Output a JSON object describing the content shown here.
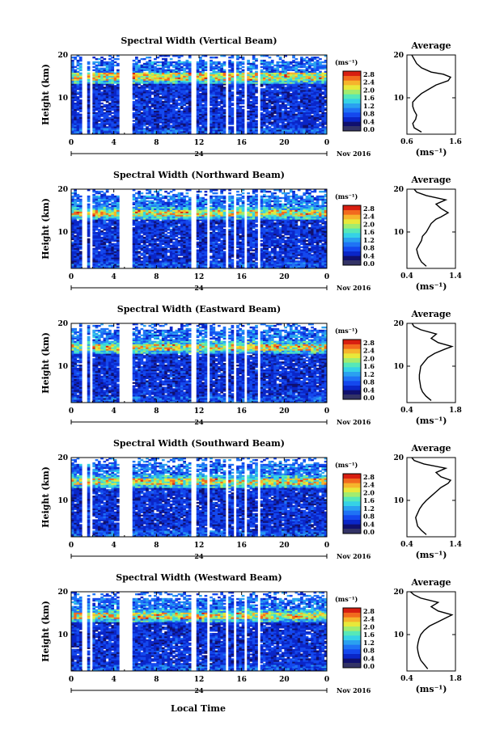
{
  "chart_data": [
    {
      "type": "heatmap",
      "title": "Spectral Width (Vertical Beam)",
      "ylabel": "Height (km)",
      "date_day": "24",
      "date_label": "Nov 2016",
      "x_ticks": [
        "0",
        "4",
        "8",
        "12",
        "16",
        "20",
        "0"
      ],
      "y_ticks": [
        "20",
        "10"
      ],
      "ylim": [
        1.5,
        20
      ],
      "xlim": [
        0,
        24
      ],
      "colorbar_unit": "(ms⁻¹)",
      "colorbar_ticks": [
        "2.8",
        "2.4",
        "2.0",
        "1.6",
        "1.2",
        "0.8",
        "0.4",
        "0.0"
      ],
      "avg_title": "Average",
      "avg_xlabel": "(ms⁻¹)",
      "avg_x_ticks": [
        "0.6",
        "1.6"
      ],
      "avg_y_ticks": [
        "20",
        "10"
      ],
      "avg_xlim": [
        0.6,
        1.6
      ],
      "data_gaps_hours": [
        [
          1.1,
          1.4
        ],
        [
          1.7,
          2.0
        ],
        [
          4.6,
          5.8
        ],
        [
          11.2,
          11.7
        ],
        [
          12.8,
          13.1
        ],
        [
          14.6,
          14.8
        ],
        [
          15.2,
          15.4
        ],
        [
          16.2,
          16.6
        ],
        [
          17.5,
          17.8
        ]
      ],
      "tropopause_km": 15,
      "profile": [
        [
          2,
          0.9
        ],
        [
          3,
          0.75
        ],
        [
          4,
          0.72
        ],
        [
          5,
          0.78
        ],
        [
          6,
          0.8
        ],
        [
          7,
          0.75
        ],
        [
          8,
          0.72
        ],
        [
          9,
          0.72
        ],
        [
          10,
          0.8
        ],
        [
          11,
          0.9
        ],
        [
          12,
          1.05
        ],
        [
          13,
          1.2
        ],
        [
          14,
          1.45
        ],
        [
          14.8,
          1.5
        ],
        [
          15.5,
          1.35
        ],
        [
          16,
          1.1
        ],
        [
          17,
          0.9
        ],
        [
          18,
          0.8
        ],
        [
          19,
          0.75
        ],
        [
          20,
          0.7
        ]
      ]
    },
    {
      "type": "heatmap",
      "title": "Spectral Width (Northward Beam)",
      "ylabel": "Height (km)",
      "date_day": "24",
      "date_label": "Nov 2016",
      "x_ticks": [
        "0",
        "4",
        "8",
        "12",
        "16",
        "20",
        "0"
      ],
      "y_ticks": [
        "20",
        "10"
      ],
      "ylim": [
        1.5,
        20
      ],
      "xlim": [
        0,
        24
      ],
      "colorbar_unit": "(ms⁻¹)",
      "colorbar_ticks": [
        "2.8",
        "2.4",
        "2.0",
        "1.6",
        "1.2",
        "0.8",
        "0.4",
        "0.0"
      ],
      "avg_title": "Average",
      "avg_xlabel": "(ms⁻¹)",
      "avg_x_ticks": [
        "0.4",
        "1.4"
      ],
      "avg_y_ticks": [
        "20",
        "10"
      ],
      "avg_xlim": [
        0.4,
        1.4
      ],
      "data_gaps_hours": [
        [
          1.1,
          1.4
        ],
        [
          1.7,
          2.0
        ],
        [
          4.6,
          5.8
        ],
        [
          11.2,
          11.7
        ],
        [
          12.8,
          13.1
        ],
        [
          14.6,
          14.8
        ],
        [
          15.2,
          15.4
        ],
        [
          16.2,
          16.6
        ],
        [
          17.5,
          17.8
        ]
      ],
      "tropopause_km": 14.5,
      "profile": [
        [
          2,
          0.8
        ],
        [
          3,
          0.7
        ],
        [
          4,
          0.65
        ],
        [
          5,
          0.62
        ],
        [
          6,
          0.6
        ],
        [
          7,
          0.65
        ],
        [
          8,
          0.7
        ],
        [
          9,
          0.72
        ],
        [
          10,
          0.8
        ],
        [
          11,
          0.85
        ],
        [
          12,
          0.9
        ],
        [
          13,
          1.0
        ],
        [
          13.5,
          1.1
        ],
        [
          14.5,
          1.25
        ],
        [
          15.5,
          1.1
        ],
        [
          16.5,
          1.0
        ],
        [
          17.5,
          1.2
        ],
        [
          18.5,
          0.8
        ],
        [
          19.3,
          0.6
        ],
        [
          20,
          0.55
        ]
      ]
    },
    {
      "type": "heatmap",
      "title": "Spectral Width (Eastward Beam)",
      "ylabel": "Height (km)",
      "date_day": "24",
      "date_label": "Nov 2016",
      "x_ticks": [
        "0",
        "4",
        "8",
        "12",
        "16",
        "20",
        "0"
      ],
      "y_ticks": [
        "20",
        "10"
      ],
      "ylim": [
        1.5,
        20
      ],
      "xlim": [
        0,
        24
      ],
      "colorbar_unit": "(ms⁻¹)",
      "colorbar_ticks": [
        "2.8",
        "2.4",
        "2.0",
        "1.6",
        "1.2",
        "0.8",
        "0.4",
        "0.0"
      ],
      "avg_title": "Average",
      "avg_xlabel": "(ms⁻¹)",
      "avg_x_ticks": [
        "0.4",
        "1.8"
      ],
      "avg_y_ticks": [
        "20",
        "10"
      ],
      "avg_xlim": [
        0.4,
        1.8
      ],
      "data_gaps_hours": [
        [
          1.1,
          1.4
        ],
        [
          1.7,
          2.0
        ],
        [
          4.6,
          5.8
        ],
        [
          11.2,
          11.7
        ],
        [
          12.8,
          13.1
        ],
        [
          14.6,
          14.8
        ],
        [
          15.2,
          15.4
        ],
        [
          16.2,
          16.6
        ],
        [
          17.5,
          17.8
        ]
      ],
      "tropopause_km": 14.5,
      "profile": [
        [
          2,
          1.1
        ],
        [
          3,
          0.95
        ],
        [
          4,
          0.85
        ],
        [
          5,
          0.8
        ],
        [
          6,
          0.78
        ],
        [
          7,
          0.76
        ],
        [
          8,
          0.76
        ],
        [
          9,
          0.78
        ],
        [
          10,
          0.8
        ],
        [
          11,
          0.9
        ],
        [
          12,
          1.0
        ],
        [
          13,
          1.2
        ],
        [
          14,
          1.5
        ],
        [
          14.6,
          1.7
        ],
        [
          15.5,
          1.3
        ],
        [
          16.5,
          1.1
        ],
        [
          17.5,
          1.25
        ],
        [
          18.5,
          0.8
        ],
        [
          19.3,
          0.6
        ],
        [
          20,
          0.55
        ]
      ]
    },
    {
      "type": "heatmap",
      "title": "Spectral Width (Southward Beam)",
      "ylabel": "Height (km)",
      "date_day": "24",
      "date_label": "Nov 2016",
      "x_ticks": [
        "0",
        "4",
        "8",
        "12",
        "16",
        "20",
        "0"
      ],
      "y_ticks": [
        "20",
        "10"
      ],
      "ylim": [
        1.5,
        20
      ],
      "xlim": [
        0,
        24
      ],
      "colorbar_unit": "(ms⁻¹)",
      "colorbar_ticks": [
        "2.8",
        "2.4",
        "2.0",
        "1.6",
        "1.2",
        "0.8",
        "0.4",
        "0.0"
      ],
      "avg_title": "Average",
      "avg_xlabel": "(ms⁻¹)",
      "avg_x_ticks": [
        "0.4",
        "1.4"
      ],
      "avg_y_ticks": [
        "20",
        "10"
      ],
      "avg_xlim": [
        0.4,
        1.4
      ],
      "data_gaps_hours": [
        [
          1.1,
          1.4
        ],
        [
          1.7,
          2.0
        ],
        [
          4.6,
          5.8
        ],
        [
          11.2,
          11.7
        ],
        [
          12.8,
          13.1
        ],
        [
          14.6,
          14.8
        ],
        [
          15.2,
          15.4
        ],
        [
          16.2,
          16.6
        ],
        [
          17.5,
          17.8
        ]
      ],
      "tropopause_km": 14.5,
      "profile": [
        [
          2,
          0.8
        ],
        [
          3,
          0.7
        ],
        [
          4,
          0.62
        ],
        [
          5,
          0.6
        ],
        [
          6,
          0.58
        ],
        [
          7,
          0.62
        ],
        [
          8,
          0.66
        ],
        [
          9,
          0.72
        ],
        [
          10,
          0.8
        ],
        [
          11,
          0.9
        ],
        [
          12,
          1.0
        ],
        [
          13,
          1.1
        ],
        [
          14,
          1.25
        ],
        [
          14.7,
          1.3
        ],
        [
          15.5,
          1.1
        ],
        [
          16.5,
          1.0
        ],
        [
          17.5,
          1.2
        ],
        [
          18.5,
          0.75
        ],
        [
          19.3,
          0.55
        ],
        [
          20,
          0.5
        ]
      ]
    },
    {
      "type": "heatmap",
      "title": "Spectral Width (Westward Beam)",
      "ylabel": "Height (km)",
      "date_day": "24",
      "date_label": "Nov 2016",
      "x_ticks": [
        "0",
        "4",
        "8",
        "12",
        "16",
        "20",
        "0"
      ],
      "y_ticks": [
        "20",
        "10"
      ],
      "ylim": [
        1.5,
        20
      ],
      "xlim": [
        0,
        24
      ],
      "colorbar_unit": "(ms⁻¹)",
      "colorbar_ticks": [
        "2.8",
        "2.4",
        "2.0",
        "1.6",
        "1.2",
        "0.8",
        "0.4",
        "0.0"
      ],
      "avg_title": "Average",
      "avg_xlabel": "(ms⁻¹)",
      "avg_x_ticks": [
        "0.4",
        "1.8"
      ],
      "avg_y_ticks": [
        "20",
        "10"
      ],
      "avg_xlim": [
        0.4,
        1.8
      ],
      "data_gaps_hours": [
        [
          1.1,
          1.4
        ],
        [
          1.7,
          2.0
        ],
        [
          4.6,
          5.8
        ],
        [
          11.2,
          11.7
        ],
        [
          12.8,
          13.1
        ],
        [
          14.6,
          14.8
        ],
        [
          15.2,
          15.4
        ],
        [
          16.2,
          16.6
        ],
        [
          17.5,
          17.8
        ]
      ],
      "tropopause_km": 14.5,
      "profile": [
        [
          2,
          1.0
        ],
        [
          3,
          0.9
        ],
        [
          4,
          0.8
        ],
        [
          5,
          0.75
        ],
        [
          6,
          0.72
        ],
        [
          7,
          0.7
        ],
        [
          8,
          0.72
        ],
        [
          9,
          0.75
        ],
        [
          10,
          0.8
        ],
        [
          11,
          0.9
        ],
        [
          12,
          1.05
        ],
        [
          13,
          1.3
        ],
        [
          14,
          1.55
        ],
        [
          14.6,
          1.7
        ],
        [
          15.5,
          1.3
        ],
        [
          16.5,
          1.1
        ],
        [
          17.5,
          1.3
        ],
        [
          18.5,
          0.8
        ],
        [
          19.3,
          0.6
        ],
        [
          20,
          0.5
        ]
      ]
    }
  ],
  "footer": {
    "xlabel": "Local Time"
  },
  "colormap": [
    "#10106e",
    "#0a26c8",
    "#1448ee",
    "#1f73f5",
    "#2aa1f0",
    "#35d2e6",
    "#56e8b8",
    "#a2ec6e",
    "#e8e83a",
    "#f6b42c",
    "#f26a1e",
    "#d81e10"
  ]
}
